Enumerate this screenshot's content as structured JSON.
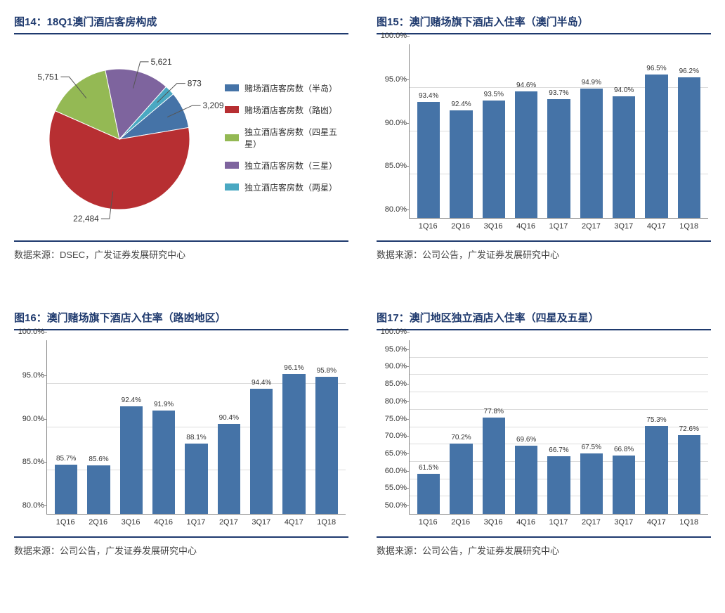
{
  "panels": {
    "pie": {
      "title": "图14：18Q1澳门酒店客房构成",
      "source": "数据来源：DSEC，广发证券发展研究中心",
      "slices": [
        {
          "label": "赌场酒店客房数（半岛）",
          "value": 3209,
          "display": "3,209",
          "color": "#4573a7"
        },
        {
          "label": "赌场酒店客房数（路凼）",
          "value": 22484,
          "display": "22,484",
          "color": "#b72f32"
        },
        {
          "label": "独立酒店客房数（四星五星）",
          "value": 5751,
          "display": "5,751",
          "color": "#94b954"
        },
        {
          "label": "独立酒店客房数（三星）",
          "value": 5621,
          "display": "5,621",
          "color": "#7e649e"
        },
        {
          "label": "独立酒店客房数（两星）",
          "value": 873,
          "display": "873",
          "color": "#4aa8c2"
        }
      ],
      "radius": 100,
      "start_angle_deg": -40,
      "leader_color": "#555555",
      "label_fontsize": 12
    },
    "bar1": {
      "title": "图15：澳门赌场旗下酒店入住率（澳门半岛）",
      "source": "数据来源：公司公告，广发证券发展研究中心",
      "categories": [
        "1Q16",
        "2Q16",
        "3Q16",
        "4Q16",
        "1Q17",
        "2Q17",
        "3Q17",
        "4Q17",
        "1Q18"
      ],
      "values": [
        93.4,
        92.4,
        93.5,
        94.6,
        93.7,
        94.9,
        94.0,
        96.5,
        96.2
      ],
      "ymin": 80.0,
      "ymax": 100.0,
      "ystep": 5.0,
      "bar_color": "#4573a7",
      "grid_color": "#dcdcdc",
      "suffix": "%"
    },
    "bar2": {
      "title": "图16：澳门赌场旗下酒店入住率（路凼地区）",
      "source": "数据来源：公司公告，广发证券发展研究中心",
      "categories": [
        "1Q16",
        "2Q16",
        "3Q16",
        "4Q16",
        "1Q17",
        "2Q17",
        "3Q17",
        "4Q17",
        "1Q18"
      ],
      "values": [
        85.7,
        85.6,
        92.4,
        91.9,
        88.1,
        90.4,
        94.4,
        96.1,
        95.8
      ],
      "ymin": 80.0,
      "ymax": 100.0,
      "ystep": 5.0,
      "bar_color": "#4573a7",
      "grid_color": "#dcdcdc",
      "suffix": "%"
    },
    "bar3": {
      "title": "图17：澳门地区独立酒店入住率（四星及五星）",
      "source": "数据来源：公司公告，广发证券发展研究中心",
      "categories": [
        "1Q16",
        "2Q16",
        "3Q16",
        "4Q16",
        "1Q17",
        "2Q17",
        "3Q17",
        "4Q17",
        "1Q18"
      ],
      "values": [
        61.5,
        70.2,
        77.8,
        69.6,
        66.7,
        67.5,
        66.8,
        75.3,
        72.6
      ],
      "ymin": 50.0,
      "ymax": 100.0,
      "ystep": 5.0,
      "bar_color": "#4573a7",
      "grid_color": "#dcdcdc",
      "suffix": "%"
    }
  }
}
